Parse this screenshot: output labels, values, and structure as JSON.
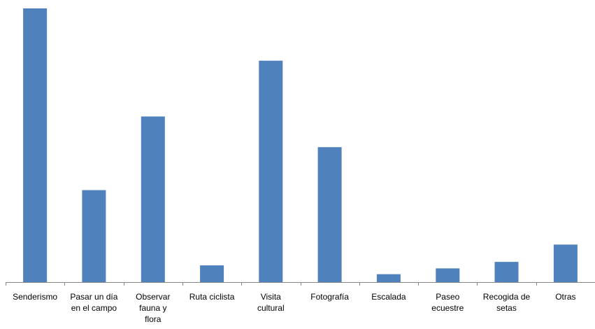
{
  "chart_data": {
    "type": "bar",
    "categories": [
      "Senderismo",
      "Pasar un día en el campo",
      "Observar fauna y flora",
      "Ruta ciclista",
      "Visita cultural",
      "Fotografía",
      "Escalada",
      "Paseo ecuestre",
      "Recogida de setas",
      "Otras"
    ],
    "category_lines": [
      [
        "Senderismo"
      ],
      [
        "Pasar un día",
        "en el campo"
      ],
      [
        "Observar",
        "fauna y",
        "flora"
      ],
      [
        "Ruta ciclista"
      ],
      [
        "Visita",
        "cultural"
      ],
      [
        "Fotografía"
      ],
      [
        "Escalada"
      ],
      [
        "Paseo",
        "ecuestre"
      ],
      [
        "Recogida de",
        "setas"
      ],
      [
        "Otras"
      ]
    ],
    "values": [
      100,
      33.6,
      60.5,
      6.1,
      80.9,
      49.3,
      2.9,
      5.0,
      7.4,
      13.7
    ],
    "ylim": [
      0,
      100
    ],
    "grid": false,
    "legend": "none",
    "title": "",
    "xlabel": "",
    "ylabel": "",
    "bar_color": "#4f81bd",
    "axis_color": "#868686"
  }
}
